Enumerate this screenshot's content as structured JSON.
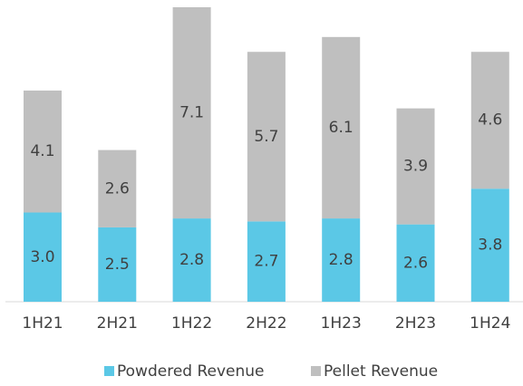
{
  "chart_data": {
    "type": "stacked-bar",
    "categories": [
      "1H21",
      "2H21",
      "1H22",
      "2H22",
      "1H23",
      "2H23",
      "1H24"
    ],
    "series": [
      {
        "name": "Powdered Revenue",
        "color": "#5bc8e6",
        "values": [
          3.0,
          2.5,
          2.8,
          2.7,
          2.8,
          2.6,
          3.8
        ],
        "value_labels": [
          "3.0",
          "2.5",
          "2.8",
          "2.7",
          "2.8",
          "2.6",
          "3.8"
        ]
      },
      {
        "name": "Pellet Revenue",
        "color": "#bfbfbf",
        "values": [
          4.1,
          2.6,
          7.1,
          5.7,
          6.1,
          3.9,
          4.6
        ],
        "value_labels": [
          "4.1",
          "2.6",
          "7.1",
          "5.7",
          "6.1",
          "3.9",
          "4.6"
        ]
      }
    ],
    "legend": "bottom"
  }
}
